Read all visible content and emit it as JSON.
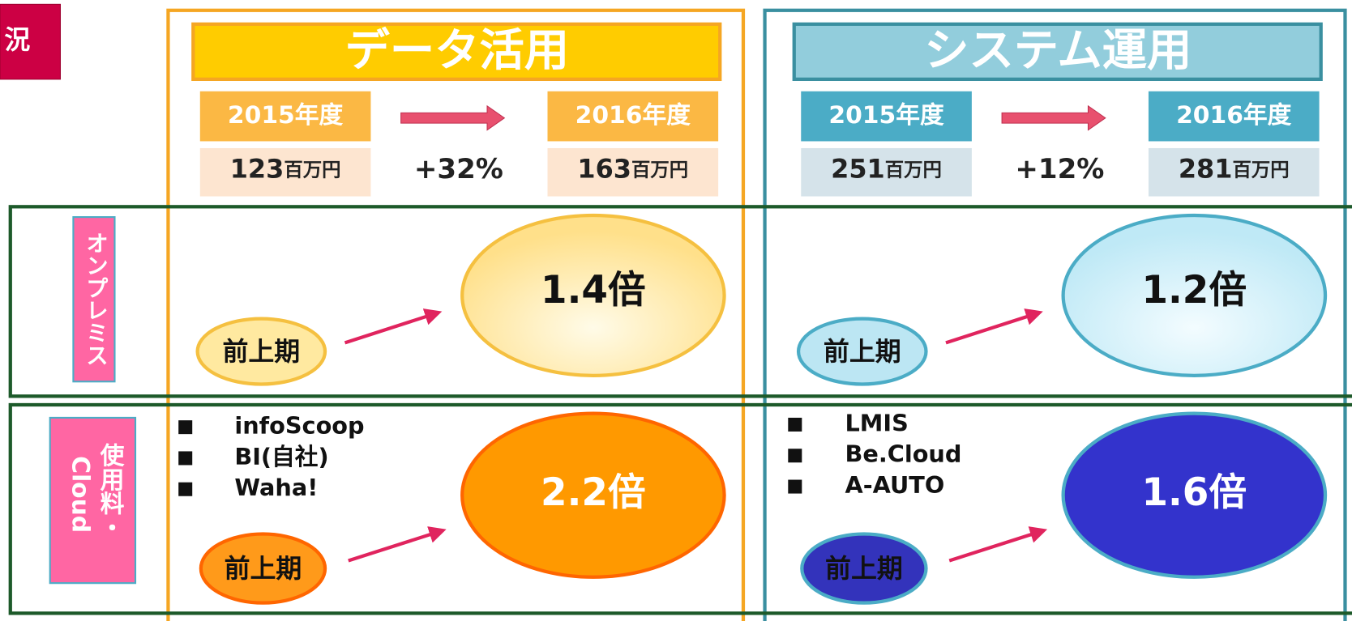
{
  "tag": "況",
  "rows": [
    "オンプレミス",
    {
      "main": "使用料・",
      "sub": "Cloud"
    }
  ],
  "columns": [
    {
      "title": "データ活用",
      "from_year": "2015年度",
      "to_year": "2016年度",
      "from_value": "123",
      "to_value": "163",
      "unit": "百万円",
      "growth": "+32%",
      "onpremise": {
        "base": "前上期",
        "ratio": "1.4倍"
      },
      "cloud": {
        "items": [
          "infoScoop",
          "BI(自社)",
          "Waha!"
        ],
        "base": "前上期",
        "ratio": "2.2倍"
      }
    },
    {
      "title": "システム運用",
      "from_year": "2015年度",
      "to_year": "2016年度",
      "from_value": "251",
      "to_value": "281",
      "unit": "百万円",
      "growth": "+12%",
      "onpremise": {
        "base": "前上期",
        "ratio": "1.2倍"
      },
      "cloud": {
        "items": [
          "LMIS",
          "Be.Cloud",
          "A-AUTO"
        ],
        "base": "前上期",
        "ratio": "1.6倍"
      }
    }
  ]
}
